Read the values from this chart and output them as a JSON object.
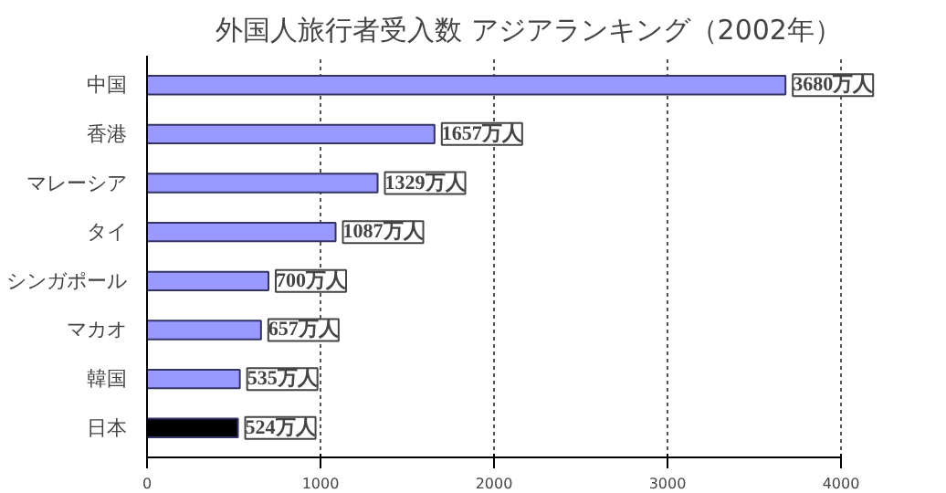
{
  "chart_data": {
    "type": "bar",
    "orientation": "horizontal",
    "title": "外国人旅行者受入数 アジアランキング（2002年）",
    "categories": [
      "中国",
      "香港",
      "マレーシア",
      "タイ",
      "シンガポール",
      "マカオ",
      "韓国",
      "日本"
    ],
    "values": [
      3680,
      1657,
      1329,
      1087,
      700,
      657,
      535,
      524
    ],
    "colors": [
      "#9999ff",
      "#9999ff",
      "#9999ff",
      "#9999ff",
      "#9999ff",
      "#9999ff",
      "#9999ff",
      "#000000"
    ],
    "value_labels": [
      "3680万人",
      "1657万人",
      "1329万人",
      "1087万人",
      "700万人",
      "657万人",
      "535万人",
      "524万人"
    ],
    "xlim": [
      0,
      4000
    ],
    "xticks": [
      0,
      1000,
      2000,
      3000,
      4000
    ],
    "grid": "x"
  }
}
